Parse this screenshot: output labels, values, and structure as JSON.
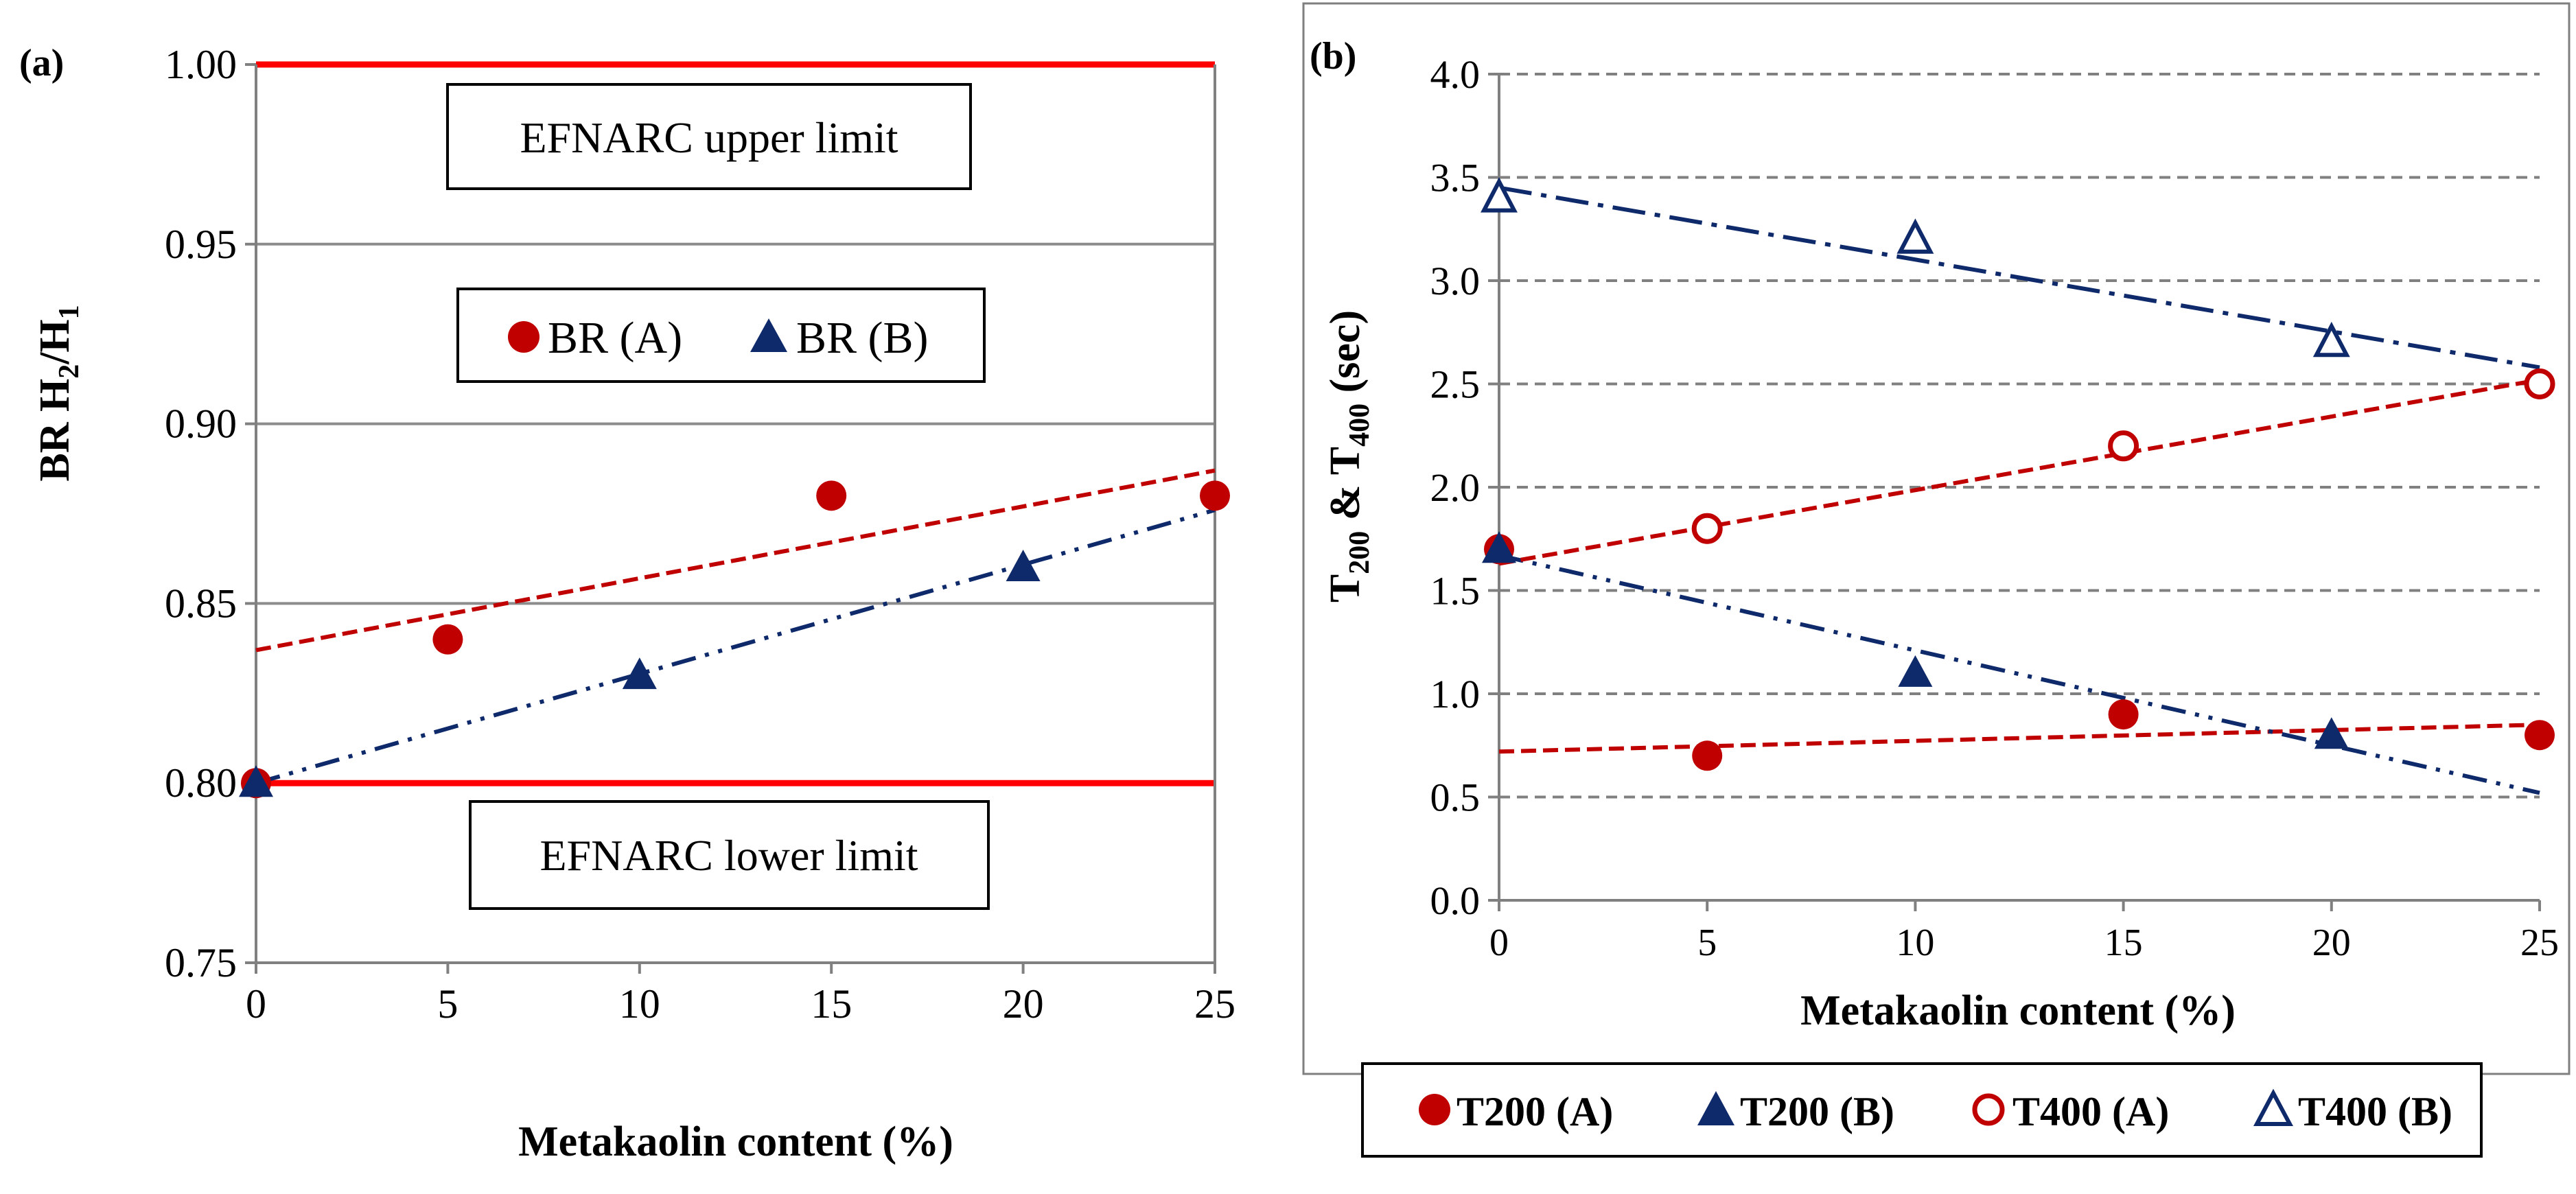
{
  "colors": {
    "red": "#C00000",
    "navy": "#0F2A6B",
    "limit_line": "#FF0000",
    "axis": "#808080",
    "grid": "#808080"
  },
  "chart_data": [
    {
      "panel_label": "(a)",
      "type": "scatter",
      "xlabel": "Metakaolin content (%)",
      "ylabel_parts": {
        "main": "BR H",
        "sub1": "2",
        "mid": "/H",
        "sub2": "1"
      },
      "xlim": [
        0,
        25
      ],
      "ylim": [
        0.75,
        1.0
      ],
      "x_ticks": [
        "0",
        "5",
        "10",
        "15",
        "20",
        "25"
      ],
      "y_ticks": [
        "0.75",
        "0.80",
        "0.85",
        "0.90",
        "0.95",
        "1.00"
      ],
      "grid": "horizontal solid",
      "limits": {
        "upper": 1.0,
        "lower": 0.8
      },
      "annotations": {
        "upper": "EFNARC upper limit",
        "lower": "EFNARC lower limit"
      },
      "legend": {
        "placement": "inside-upper-middle",
        "entries": [
          "BR (A)",
          "BR (B)"
        ]
      },
      "series": [
        {
          "name": "BR (A)",
          "marker": "circle-filled",
          "color": "red",
          "x": [
            0,
            5,
            15,
            25
          ],
          "y": [
            0.8,
            0.84,
            0.88,
            0.88
          ],
          "trend": {
            "style": "dashed",
            "y0": 0.837,
            "y1": 0.887
          }
        },
        {
          "name": "BR (B)",
          "marker": "triangle-filled",
          "color": "navy",
          "x": [
            0,
            10,
            20
          ],
          "y": [
            0.8,
            0.83,
            0.86
          ],
          "trend": {
            "style": "dash-dot-dot",
            "y0": 0.8,
            "y1": 0.876
          }
        }
      ]
    },
    {
      "panel_label": "(b)",
      "type": "scatter",
      "xlabel": "Metakaolin content (%)",
      "ylabel_parts": {
        "t1": "T",
        "s1": "200",
        "amp": " & T",
        "s2": "400",
        "unit": " (sec)"
      },
      "xlim": [
        0,
        25
      ],
      "ylim": [
        0,
        4
      ],
      "x_ticks": [
        "0",
        "5",
        "10",
        "15",
        "20",
        "25"
      ],
      "y_ticks": [
        "0.0",
        "0.5",
        "1.0",
        "1.5",
        "2.0",
        "2.5",
        "3.0",
        "3.5",
        "4.0"
      ],
      "grid": "horizontal dashed",
      "legend": {
        "placement": "below",
        "entries": [
          "T200 (A)",
          "T200 (B)",
          "T400 (A)",
          "T400 (B)"
        ]
      },
      "series": [
        {
          "name": "T200 (A)",
          "marker": "circle-filled",
          "color": "red",
          "x": [
            0,
            5,
            15,
            25
          ],
          "y": [
            1.7,
            0.7,
            0.9,
            0.8
          ],
          "trend": {
            "style": "dashed",
            "y0": 0.72,
            "y1": 0.85
          }
        },
        {
          "name": "T200 (B)",
          "marker": "triangle-filled",
          "color": "navy",
          "x": [
            0,
            10,
            20
          ],
          "y": [
            1.7,
            1.1,
            0.8
          ],
          "trend": {
            "style": "dash-dot-dot",
            "y0": 1.67,
            "y1": 0.52
          }
        },
        {
          "name": "T400 (A)",
          "marker": "circle-open",
          "color": "red",
          "x": [
            5,
            15,
            25
          ],
          "y": [
            1.8,
            2.2,
            2.5
          ],
          "trend": {
            "style": "dashed",
            "y0": 1.63,
            "y1": 2.52
          }
        },
        {
          "name": "T400 (B)",
          "marker": "triangle-open",
          "color": "navy",
          "x": [
            0,
            10,
            20
          ],
          "y": [
            3.4,
            3.2,
            2.7
          ],
          "trend": {
            "style": "dash-dot",
            "y0": 3.45,
            "y1": 2.58
          }
        }
      ]
    }
  ]
}
